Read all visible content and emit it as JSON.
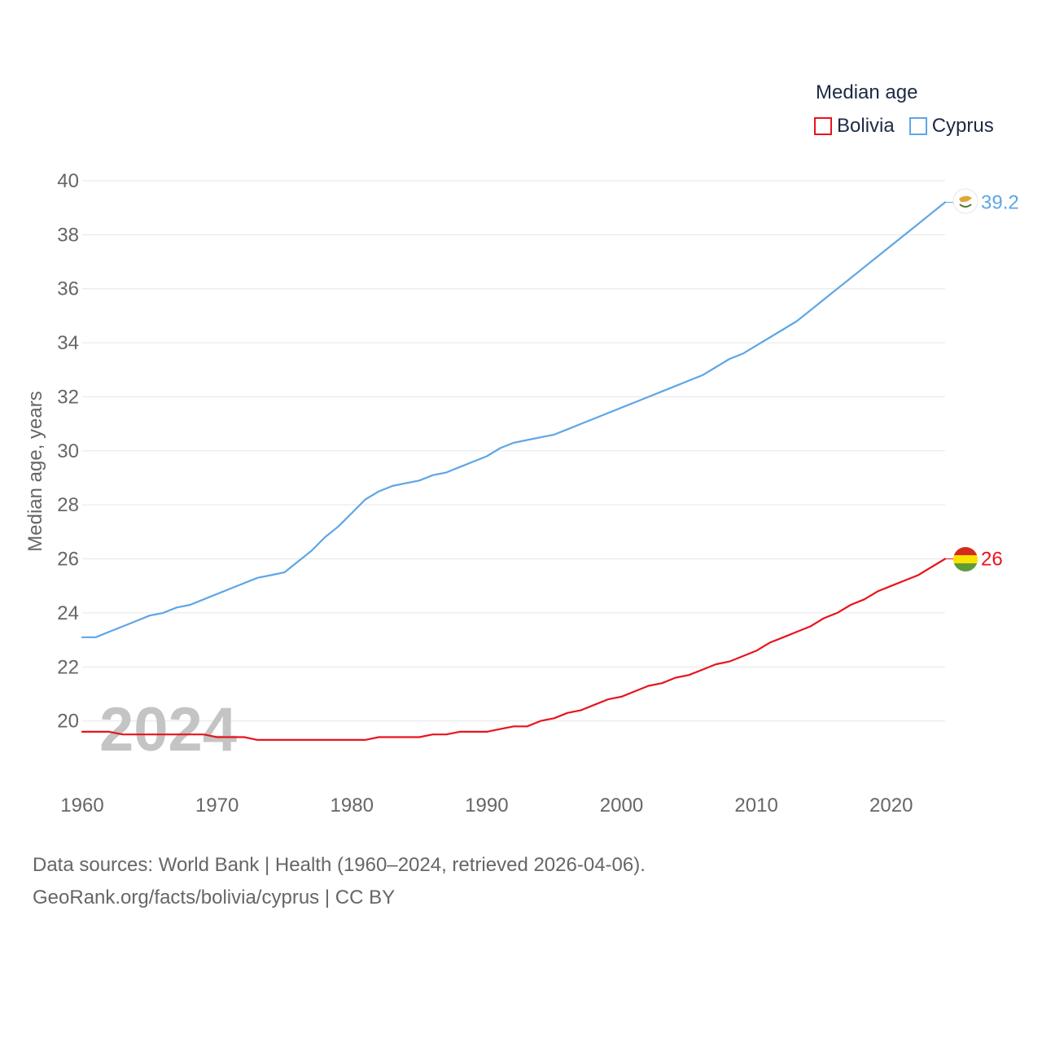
{
  "legend": {
    "title": "Median age",
    "items": [
      {
        "label": "Bolivia",
        "color": "#e8141c"
      },
      {
        "label": "Cyprus",
        "color": "#5ea6e6"
      }
    ]
  },
  "year_watermark": "2024",
  "footer": {
    "line1": "Data sources: World Bank | Health (1960–2024, retrieved 2026-04-06).",
    "line2": "GeoRank.org/facts/bolivia/cyprus | CC BY"
  },
  "chart_data": {
    "type": "line",
    "title": "Median age",
    "xlabel": "",
    "ylabel": "Median age, years",
    "xlim": [
      1960,
      2024
    ],
    "ylim": [
      18,
      40
    ],
    "x_ticks": [
      1960,
      1970,
      1980,
      1990,
      2000,
      2010,
      2020
    ],
    "y_ticks": [
      20,
      22,
      24,
      26,
      28,
      30,
      32,
      34,
      36,
      38,
      40
    ],
    "grid": true,
    "legend_position": "top-right",
    "x": [
      1960,
      1961,
      1962,
      1963,
      1964,
      1965,
      1966,
      1967,
      1968,
      1969,
      1970,
      1971,
      1972,
      1973,
      1974,
      1975,
      1976,
      1977,
      1978,
      1979,
      1980,
      1981,
      1982,
      1983,
      1984,
      1985,
      1986,
      1987,
      1988,
      1989,
      1990,
      1991,
      1992,
      1993,
      1994,
      1995,
      1996,
      1997,
      1998,
      1999,
      2000,
      2001,
      2002,
      2003,
      2004,
      2005,
      2006,
      2007,
      2008,
      2009,
      2010,
      2011,
      2012,
      2013,
      2014,
      2015,
      2016,
      2017,
      2018,
      2019,
      2020,
      2021,
      2022,
      2023,
      2024
    ],
    "series": [
      {
        "name": "Bolivia",
        "color": "#e8141c",
        "end_label": "26",
        "values": [
          19.6,
          19.6,
          19.6,
          19.5,
          19.5,
          19.5,
          19.5,
          19.5,
          19.5,
          19.5,
          19.4,
          19.4,
          19.4,
          19.3,
          19.3,
          19.3,
          19.3,
          19.3,
          19.3,
          19.3,
          19.3,
          19.3,
          19.4,
          19.4,
          19.4,
          19.4,
          19.5,
          19.5,
          19.6,
          19.6,
          19.6,
          19.7,
          19.8,
          19.8,
          20.0,
          20.1,
          20.3,
          20.4,
          20.6,
          20.8,
          20.9,
          21.1,
          21.3,
          21.4,
          21.6,
          21.7,
          21.9,
          22.1,
          22.2,
          22.4,
          22.6,
          22.9,
          23.1,
          23.3,
          23.5,
          23.8,
          24.0,
          24.3,
          24.5,
          24.8,
          25.0,
          25.2,
          25.4,
          25.7,
          26.0
        ]
      },
      {
        "name": "Cyprus",
        "color": "#5ea6e6",
        "end_label": "39.2",
        "values": [
          23.1,
          23.1,
          23.3,
          23.5,
          23.7,
          23.9,
          24.0,
          24.2,
          24.3,
          24.5,
          24.7,
          24.9,
          25.1,
          25.3,
          25.4,
          25.5,
          25.9,
          26.3,
          26.8,
          27.2,
          27.7,
          28.2,
          28.5,
          28.7,
          28.8,
          28.9,
          29.1,
          29.2,
          29.4,
          29.6,
          29.8,
          30.1,
          30.3,
          30.4,
          30.5,
          30.6,
          30.8,
          31.0,
          31.2,
          31.4,
          31.6,
          31.8,
          32.0,
          32.2,
          32.4,
          32.6,
          32.8,
          33.1,
          33.4,
          33.6,
          33.9,
          34.2,
          34.5,
          34.8,
          35.2,
          35.6,
          36.0,
          36.4,
          36.8,
          37.2,
          37.6,
          38.0,
          38.4,
          38.8,
          39.2
        ]
      }
    ]
  }
}
